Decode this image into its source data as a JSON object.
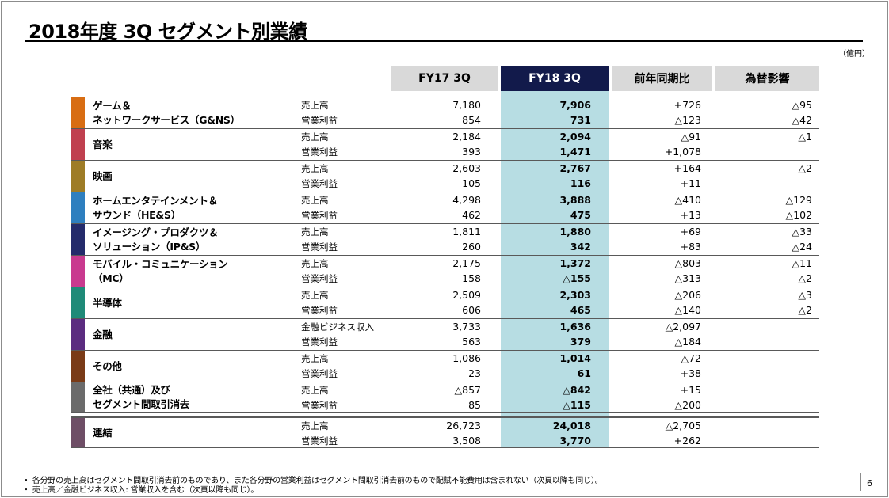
{
  "title": "2018年度 3Q セグメント別業績",
  "unit": "（億円）",
  "headers": {
    "fy17": "FY17 3Q",
    "fy18": "FY18 3Q",
    "yoy": "前年同期比",
    "fx": "為替影響"
  },
  "colors": {
    "header_gray": "#d9d9d9",
    "header_navy": "#121a4b",
    "fy18_highlight": "#b7dde3",
    "game": "#d86d13",
    "music": "#c0404f",
    "pictures": "#9e7c26",
    "hes": "#2e7fbf",
    "ips": "#242b6b",
    "mc": "#c93a8f",
    "semi": "#1f8a78",
    "finance": "#5b2c80",
    "other": "#7a3b17",
    "corporate": "#6b6b6b",
    "consolidated": "#6e4e66"
  },
  "segments": [
    {
      "name_lines": [
        "ゲーム＆",
        "ネットワークサービス（G&NS）"
      ],
      "rows": [
        {
          "metric": "売上高",
          "fy17": "7,180",
          "fy18": "7,906",
          "yoy": "+726",
          "fx": "△95"
        },
        {
          "metric": "営業利益",
          "fy17": "854",
          "fy18": "731",
          "yoy": "△123",
          "fx": "△42"
        }
      ]
    },
    {
      "name_lines": [
        "音楽"
      ],
      "rows": [
        {
          "metric": "売上高",
          "fy17": "2,184",
          "fy18": "2,094",
          "yoy": "△91",
          "fx": "△1"
        },
        {
          "metric": "営業利益",
          "fy17": "393",
          "fy18": "1,471",
          "yoy": "+1,078",
          "fx": ""
        }
      ]
    },
    {
      "name_lines": [
        "映画"
      ],
      "rows": [
        {
          "metric": "売上高",
          "fy17": "2,603",
          "fy18": "2,767",
          "yoy": "+164",
          "fx": "△2"
        },
        {
          "metric": "営業利益",
          "fy17": "105",
          "fy18": "116",
          "yoy": "+11",
          "fx": ""
        }
      ]
    },
    {
      "name_lines": [
        "ホームエンタテインメント＆",
        "サウンド（HE&S）"
      ],
      "rows": [
        {
          "metric": "売上高",
          "fy17": "4,298",
          "fy18": "3,888",
          "yoy": "△410",
          "fx": "△129"
        },
        {
          "metric": "営業利益",
          "fy17": "462",
          "fy18": "475",
          "yoy": "+13",
          "fx": "△102"
        }
      ]
    },
    {
      "name_lines": [
        "イメージング・プロダクツ＆",
        "ソリューション（IP&S）"
      ],
      "rows": [
        {
          "metric": "売上高",
          "fy17": "1,811",
          "fy18": "1,880",
          "yoy": "+69",
          "fx": "△33"
        },
        {
          "metric": "営業利益",
          "fy17": "260",
          "fy18": "342",
          "yoy": "+83",
          "fx": "△24"
        }
      ]
    },
    {
      "name_lines": [
        "モバイル・コミュニケーション",
        "（MC）"
      ],
      "rows": [
        {
          "metric": "売上高",
          "fy17": "2,175",
          "fy18": "1,372",
          "yoy": "△803",
          "fx": "△11"
        },
        {
          "metric": "営業利益",
          "fy17": "158",
          "fy18": "△155",
          "yoy": "△313",
          "fx": "△2"
        }
      ]
    },
    {
      "name_lines": [
        "半導体"
      ],
      "rows": [
        {
          "metric": "売上高",
          "fy17": "2,509",
          "fy18": "2,303",
          "yoy": "△206",
          "fx": "△3"
        },
        {
          "metric": "営業利益",
          "fy17": "606",
          "fy18": "465",
          "yoy": "△140",
          "fx": "△2"
        }
      ]
    },
    {
      "name_lines": [
        "金融"
      ],
      "rows": [
        {
          "metric": "金融ビジネス収入",
          "fy17": "3,733",
          "fy18": "1,636",
          "yoy": "△2,097",
          "fx": ""
        },
        {
          "metric": "営業利益",
          "fy17": "563",
          "fy18": "379",
          "yoy": "△184",
          "fx": ""
        }
      ]
    },
    {
      "name_lines": [
        "その他"
      ],
      "rows": [
        {
          "metric": "売上高",
          "fy17": "1,086",
          "fy18": "1,014",
          "yoy": "△72",
          "fx": ""
        },
        {
          "metric": "営業利益",
          "fy17": "23",
          "fy18": "61",
          "yoy": "+38",
          "fx": ""
        }
      ]
    },
    {
      "name_lines": [
        "全社（共通）及び",
        "セグメント間取引消去"
      ],
      "rows": [
        {
          "metric": "売上高",
          "fy17": "△857",
          "fy18": "△842",
          "yoy": "+15",
          "fx": ""
        },
        {
          "metric": "営業利益",
          "fy17": "85",
          "fy18": "△115",
          "yoy": "△200",
          "fx": ""
        }
      ]
    }
  ],
  "consolidated": {
    "name_lines": [
      "連結"
    ],
    "rows": [
      {
        "metric": "売上高",
        "fy17": "26,723",
        "fy18": "24,018",
        "yoy": "△2,705",
        "fx": ""
      },
      {
        "metric": "営業利益",
        "fy17": "3,508",
        "fy18": "3,770",
        "yoy": "+262",
        "fx": ""
      }
    ]
  },
  "footnotes": [
    "・ 各分野の売上高はセグメント間取引消去前のものであり、また各分野の営業利益はセグメント間取引消去前のもので配賦不能費用は含まれない（次頁以降も同じ）。",
    "・ 売上高／金融ビジネス収入: 営業収入を含む（次頁以降も同じ）。"
  ],
  "page_number": "6"
}
